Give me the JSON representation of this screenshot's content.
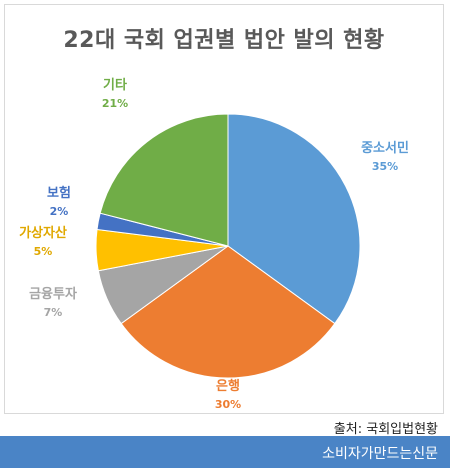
{
  "chart_data": {
    "type": "pie",
    "title": "22대 국회 업권별 법안 발의 현황",
    "slices": [
      {
        "label": "중소서민",
        "value": 35,
        "pct_label": "35%",
        "color": "#5b9bd5"
      },
      {
        "label": "은행",
        "value": 30,
        "pct_label": "30%",
        "color": "#ed7d31"
      },
      {
        "label": "금융투자",
        "value": 7,
        "pct_label": "7%",
        "color": "#a5a5a5"
      },
      {
        "label": "가상자산",
        "value": 5,
        "pct_label": "5%",
        "color": "#ffc000"
      },
      {
        "label": "보험",
        "value": 2,
        "pct_label": "2%",
        "color": "#4472c4"
      },
      {
        "label": "기타",
        "value": 21,
        "pct_label": "21%",
        "color": "#70ad47"
      }
    ],
    "legend": "none",
    "label_colors": {
      "중소서민": "#5b9bd5",
      "은행": "#ed7d31",
      "금융투자": "#a5a5a5",
      "가상자산": "#e0a800",
      "보험": "#4472c4",
      "기타": "#70ad47"
    }
  },
  "source": "출처: 국회입법현황",
  "footer": {
    "publisher": "소비자가만드는신문"
  }
}
